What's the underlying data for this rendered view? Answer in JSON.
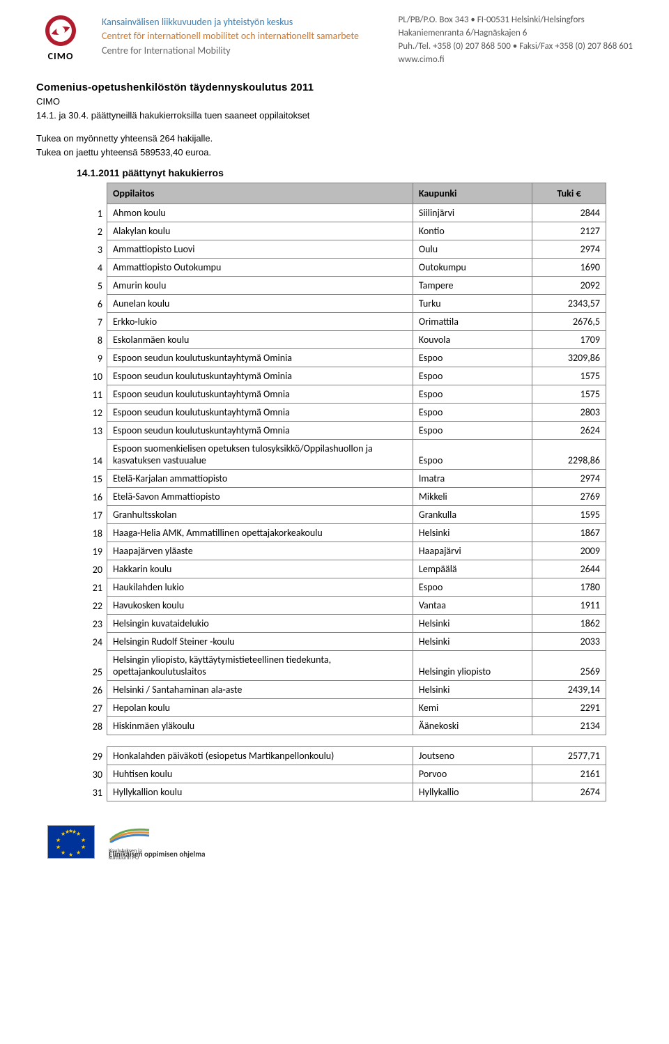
{
  "header": {
    "logo_label": "CIMO",
    "org_line1": "Kansainvälisen liikkuvuuden ja yhteistyön keskus",
    "org_line2": "Centret för internationell mobilitet och internationellt samarbete",
    "org_line3": "Centre for International Mobility",
    "contact_line1": "PL/PB/P.O. Box 343 • FI-00531 Helsinki/Helsingfors",
    "contact_line2": "Hakaniemenranta 6/Hagnäskajen 6",
    "contact_line3": "Puh./Tel. +358 (0) 207 868 500 • Faksi/Fax +358 (0) 207 868 601",
    "contact_line4": "www.cimo.fi",
    "logo_color_main": "#b01c2e",
    "org_color1": "#3a7fb5",
    "org_color2": "#cf7a2e",
    "org_color3": "#666666"
  },
  "title": {
    "heading": "Comenius-opetushenkilöstön täydennyskoulutus 2011",
    "sub1": "CIMO",
    "sub2": "14.1. ja 30.4. päättyneillä hakukierroksilla tuen saaneet oppilaitokset",
    "sub4": "Tukea on myönnetty yhteensä 264 hakijalle.",
    "sub5": "Tukea on jaettu yhteensä 589533,40 euroa."
  },
  "table": {
    "round_title": "14.1.2011 päättynyt hakukierros",
    "col_name": "Oppilaitos",
    "col_city": "Kaupunki",
    "col_amt": "Tuki €",
    "header_bg": "#bcbcbc",
    "border_color": "#7e7e7e",
    "rows": [
      {
        "n": "1",
        "name": "Ahmon koulu",
        "city": "Siilinjärvi",
        "amt": "2844"
      },
      {
        "n": "2",
        "name": "Alakylan koulu",
        "city": "Kontio",
        "amt": "2127"
      },
      {
        "n": "3",
        "name": "Ammattiopisto Luovi",
        "city": "Oulu",
        "amt": "2974"
      },
      {
        "n": "4",
        "name": "Ammattiopisto Outokumpu",
        "city": "Outokumpu",
        "amt": "1690"
      },
      {
        "n": "5",
        "name": "Amurin koulu",
        "city": "Tampere",
        "amt": "2092"
      },
      {
        "n": "6",
        "name": "Aunelan koulu",
        "city": "Turku",
        "amt": "2343,57"
      },
      {
        "n": "7",
        "name": "Erkko-lukio",
        "city": "Orimattila",
        "amt": "2676,5"
      },
      {
        "n": "8",
        "name": "Eskolanmäen koulu",
        "city": "Kouvola",
        "amt": "1709"
      },
      {
        "n": "9",
        "name": "Espoon seudun koulutuskuntayhtymä Ominia",
        "city": "Espoo",
        "amt": "3209,86"
      },
      {
        "n": "10",
        "name": "Espoon seudun koulutuskuntayhtymä Ominia",
        "city": "Espoo",
        "amt": "1575"
      },
      {
        "n": "11",
        "name": "Espoon seudun koulutuskuntayhtymä Omnia",
        "city": "Espoo",
        "amt": "1575"
      },
      {
        "n": "12",
        "name": "Espoon seudun koulutuskuntayhtymä Omnia",
        "city": "Espoo",
        "amt": "2803"
      },
      {
        "n": "13",
        "name": "Espoon seudun koulutuskuntayhtymä Omnia",
        "city": "Espoo",
        "amt": "2624"
      },
      {
        "n": "14",
        "name": "Espoon suomenkielisen opetuksen tulosyksikkö/Oppilashuollon ja kasvatuksen vastuualue",
        "city": "Espoo",
        "amt": "2298,86"
      },
      {
        "n": "15",
        "name": "Etelä-Karjalan ammattiopisto",
        "city": "Imatra",
        "amt": "2974"
      },
      {
        "n": "16",
        "name": "Etelä-Savon Ammattiopisto",
        "city": "Mikkeli",
        "amt": "2769"
      },
      {
        "n": "17",
        "name": "Granhultsskolan",
        "city": "Grankulla",
        "amt": "1595"
      },
      {
        "n": "18",
        "name": "Haaga-Helia AMK, Ammatillinen opettajakorkeakoulu",
        "city": "Helsinki",
        "amt": "1867"
      },
      {
        "n": "19",
        "name": "Haapajärven yläaste",
        "city": "Haapajärvi",
        "amt": "2009"
      },
      {
        "n": "20",
        "name": "Hakkarin koulu",
        "city": "Lempäälä",
        "amt": "2644"
      },
      {
        "n": "21",
        "name": "Haukilahden lukio",
        "city": "Espoo",
        "amt": "1780"
      },
      {
        "n": "22",
        "name": "Havukosken koulu",
        "city": "Vantaa",
        "amt": "1911"
      },
      {
        "n": "23",
        "name": "Helsingin kuvataidelukio",
        "city": "Helsinki",
        "amt": "1862"
      },
      {
        "n": "24",
        "name": "Helsingin Rudolf Steiner -koulu",
        "city": "Helsinki",
        "amt": "2033"
      },
      {
        "n": "25",
        "name": "Helsingin yliopisto, käyttäytymistieteellinen tiedekunta, opettajankoulutuslaitos",
        "city": "Helsingin yliopisto",
        "amt": "2569"
      },
      {
        "n": "26",
        "name": "Helsinki / Santahaminan ala-aste",
        "city": "Helsinki",
        "amt": "2439,14"
      },
      {
        "n": "27",
        "name": "Hepolan koulu",
        "city": "Kemi",
        "amt": "2291"
      },
      {
        "n": "28",
        "name": "Hiskinmäen yläkoulu",
        "city": "Äänekoski",
        "amt": "2134"
      }
    ],
    "rows2": [
      {
        "n": "29",
        "name": "Honkalahden päiväkoti (esiopetus Martikanpellonkoulu)",
        "city": "Joutseno",
        "amt": "2577,71"
      },
      {
        "n": "30",
        "name": "Huhtisen koulu",
        "city": "Porvoo",
        "amt": "2161"
      },
      {
        "n": "31",
        "name": "Hyllykallion koulu",
        "city": "Hyllykallio",
        "amt": "2674"
      }
    ]
  },
  "footer": {
    "programme_small": "Koulutuksen ja kulttuurin PO",
    "programme_main": "Elinikäisen oppimisen ohjelma"
  }
}
